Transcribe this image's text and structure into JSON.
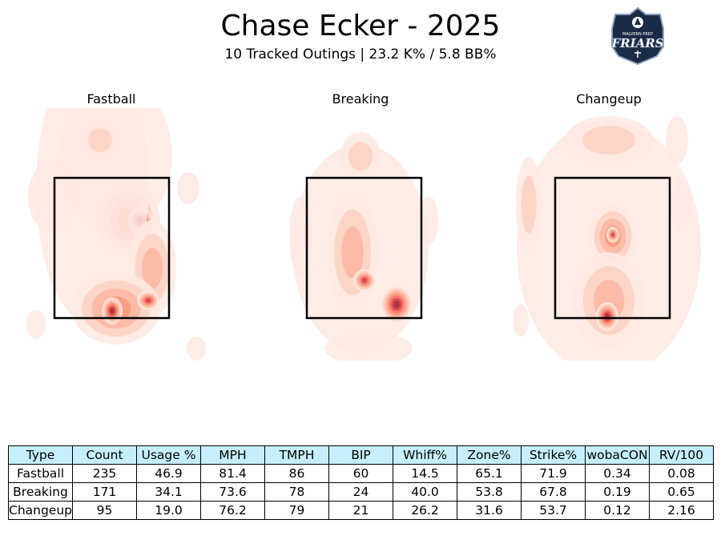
{
  "header": {
    "title": "Chase Ecker - 2025",
    "subtitle": "10 Tracked Outings | 23.2 K% / 5.8 BB%",
    "logo": {
      "top_text": "MALVERN PREP",
      "main_text": "FRIARS",
      "icon": "friars-shield-logo"
    }
  },
  "chart_data": {
    "type": "heatmap",
    "panels": [
      {
        "title": "Fastball",
        "pitch_type": "Fastball"
      },
      {
        "title": "Breaking",
        "pitch_type": "Breaking"
      },
      {
        "title": "Changeup",
        "pitch_type": "Changeup"
      }
    ],
    "colormap": "Reds",
    "strike_zone": true,
    "axes_visible": false
  },
  "table": {
    "header_color": "#c5effc",
    "columns": [
      "Type",
      "Count",
      "Usage %",
      "MPH",
      "TMPH",
      "BIP",
      "Whiff%",
      "Zone%",
      "Strike%",
      "wobaCON",
      "RV/100"
    ],
    "rows": [
      [
        "Fastball",
        "235",
        "46.9",
        "81.4",
        "86",
        "60",
        "14.5",
        "65.1",
        "71.9",
        "0.34",
        "0.08"
      ],
      [
        "Breaking",
        "171",
        "34.1",
        "73.6",
        "78",
        "24",
        "40.0",
        "53.8",
        "67.8",
        "0.19",
        "0.65"
      ],
      [
        "Changeup",
        "95",
        "19.0",
        "76.2",
        "79",
        "21",
        "26.2",
        "31.6",
        "53.7",
        "0.12",
        "2.16"
      ]
    ]
  }
}
